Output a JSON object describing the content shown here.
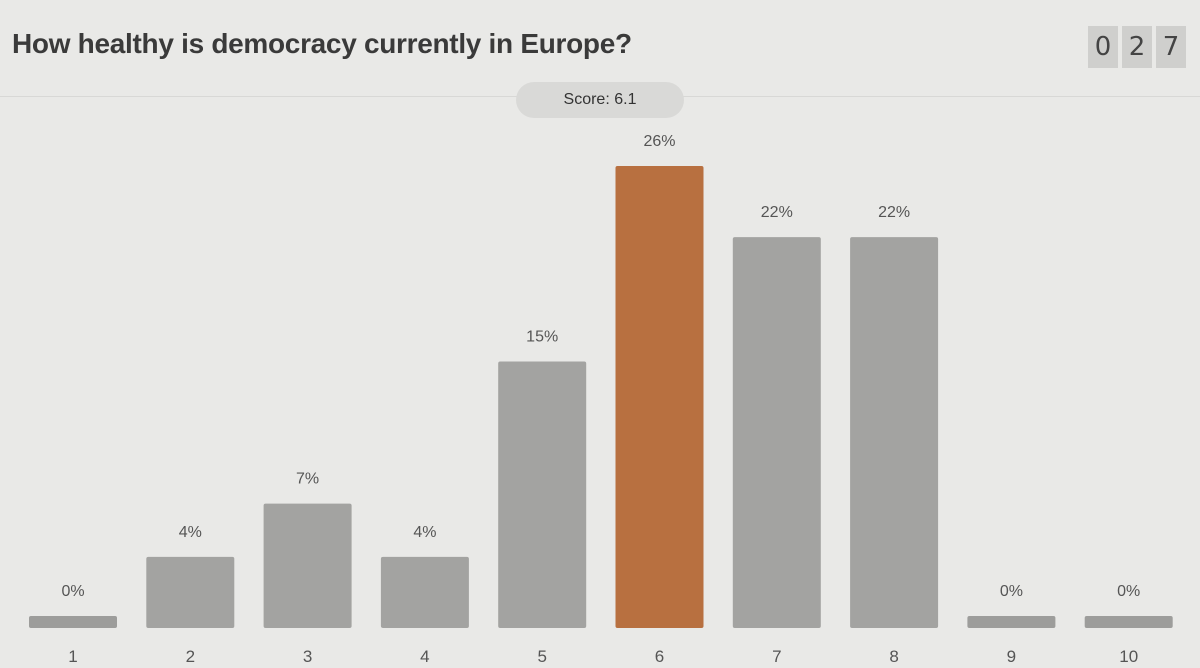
{
  "header": {
    "title": "How healthy is democracy currently in Europe?",
    "counter_digits": [
      "0",
      "2",
      "7"
    ]
  },
  "score": {
    "text": "Score: 6.1"
  },
  "chart_data": {
    "type": "bar",
    "title": "How healthy is democracy currently in Europe?",
    "categories": [
      "1",
      "2",
      "3",
      "4",
      "5",
      "6",
      "7",
      "8",
      "9",
      "10"
    ],
    "values": [
      0,
      4,
      7,
      4,
      15,
      26,
      22,
      22,
      0,
      0
    ],
    "labels": [
      "0%",
      "4%",
      "7%",
      "4%",
      "15%",
      "26%",
      "22%",
      "22%",
      "0%",
      "0%"
    ],
    "ylim": [
      0,
      26
    ],
    "highlight_index": 5,
    "colors": {
      "bar": "#a3a3a1",
      "highlight": "#b87040",
      "minbar": "#9d9d9b"
    }
  }
}
